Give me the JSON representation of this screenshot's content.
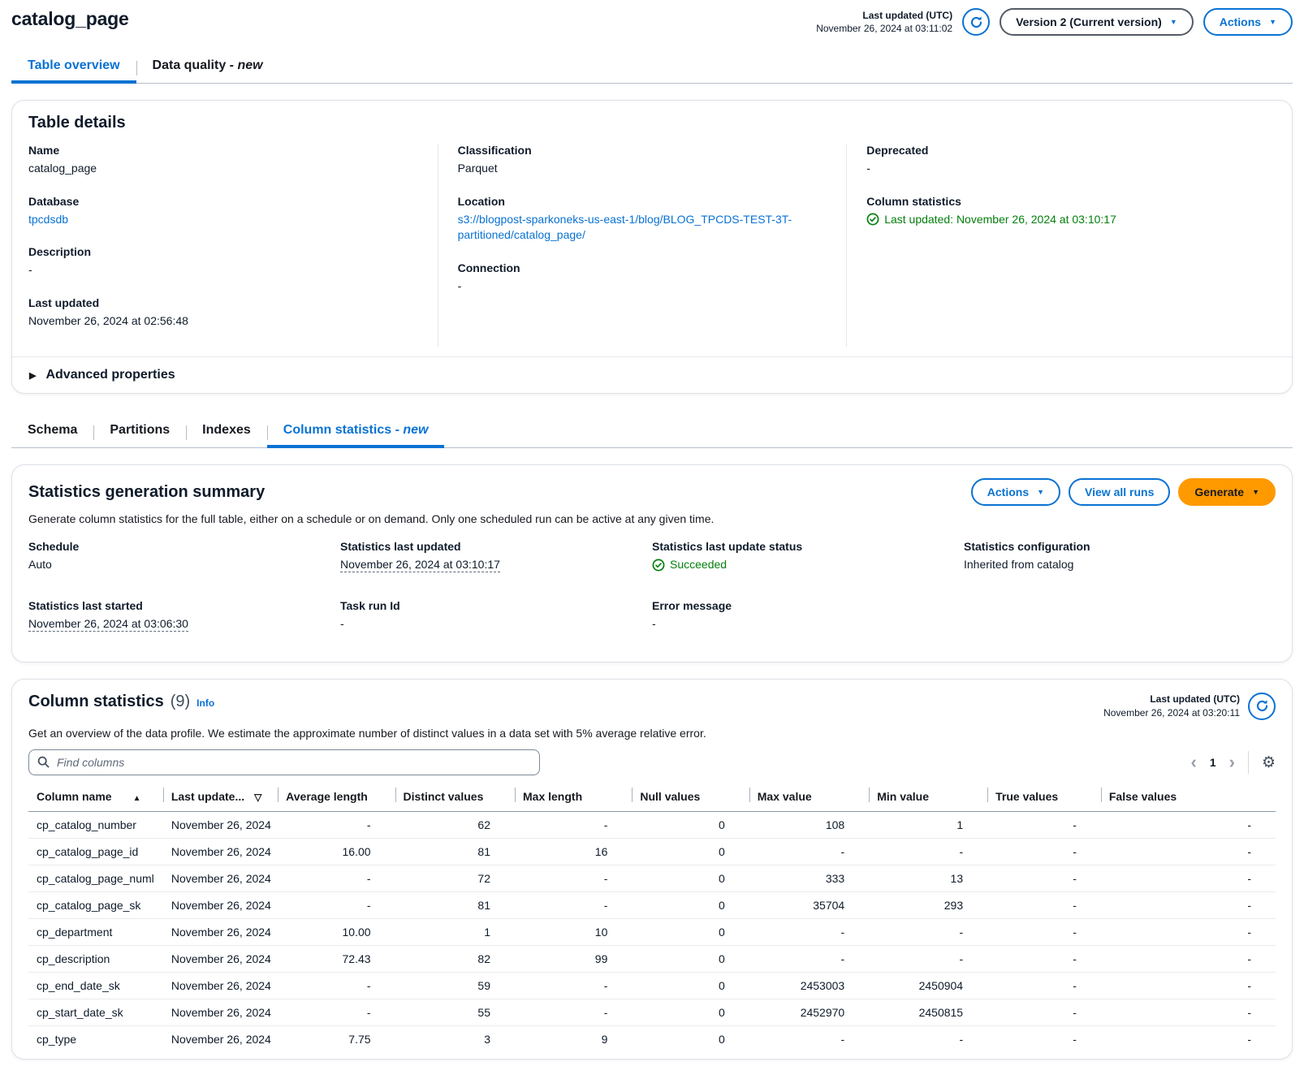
{
  "colors": {
    "accent_blue": "#0972d3",
    "success_green": "#037f0c",
    "primary_orange": "#ff9900"
  },
  "page": {
    "title": "catalog_page"
  },
  "top_bar": {
    "last_updated_label": "Last updated (UTC)",
    "last_updated_value": "November 26, 2024 at 03:11:02",
    "version_selector": "Version 2 (Current version)",
    "actions_button": "Actions"
  },
  "page_tabs": [
    {
      "label": "Table overview",
      "active": true
    },
    {
      "label": "Data quality -",
      "suffix_italic": "new",
      "active": false
    }
  ],
  "table_details": {
    "title": "Table details",
    "columns": [
      [
        {
          "label": "Name",
          "value": "catalog_page"
        },
        {
          "label": "Database",
          "value": "tpcdsdb",
          "type": "link"
        },
        {
          "label": "Description",
          "value": "-"
        },
        {
          "label": "Last updated",
          "value": "November 26, 2024 at 02:56:48"
        }
      ],
      [
        {
          "label": "Classification",
          "value": "Parquet"
        },
        {
          "label": "Location",
          "value": "s3://blogpost-sparkoneks-us-east-1/blog/BLOG_TPCDS-TEST-3T-partitioned/catalog_page/",
          "type": "link"
        },
        {
          "label": "Connection",
          "value": "-"
        }
      ],
      [
        {
          "label": "Deprecated",
          "value": "-"
        },
        {
          "label": "Column statistics",
          "value": "Last updated: November 26, 2024 at 03:10:17",
          "type": "success"
        }
      ]
    ]
  },
  "advanced_properties": {
    "label": "Advanced properties"
  },
  "section_tabs": [
    {
      "label": "Schema",
      "active": false
    },
    {
      "label": "Partitions",
      "active": false
    },
    {
      "label": "Indexes",
      "active": false
    },
    {
      "label": "Column statistics -",
      "suffix_italic": "new",
      "active": true
    }
  ],
  "stats_summary": {
    "title": "Statistics generation summary",
    "description": "Generate column statistics for the full table, either on a schedule or on demand. Only one scheduled run can be active at any given time.",
    "actions_button": "Actions",
    "view_all_runs_button": "View all runs",
    "generate_button": "Generate",
    "fields": [
      {
        "label": "Schedule",
        "value": "Auto"
      },
      {
        "label": "Statistics last updated",
        "value": "November 26, 2024 at 03:10:17",
        "type": "dotted"
      },
      {
        "label": "Statistics last update status",
        "value": "Succeeded",
        "type": "success"
      },
      {
        "label": "Statistics configuration",
        "value": "Inherited from catalog"
      },
      {
        "label": "Statistics last started",
        "value": "November 26, 2024 at 03:06:30",
        "type": "dotted"
      },
      {
        "label": "Task run Id",
        "value": "-"
      },
      {
        "label": "Error message",
        "value": "-"
      }
    ]
  },
  "column_statistics": {
    "title": "Column statistics",
    "count": "(9)",
    "info_link": "Info",
    "description": "Get an overview of the data profile. We estimate the approximate number of distinct values in a data set with 5% average relative error.",
    "search_placeholder": "Find columns",
    "last_updated_label": "Last updated (UTC)",
    "last_updated_value": "November 26, 2024 at 03:20:11",
    "pagination": {
      "current_page": "1"
    },
    "table": {
      "columns": [
        {
          "label": "Column name",
          "icon": "sort-ascending"
        },
        {
          "label": "Last update...",
          "icon": "filter"
        },
        {
          "label": "Average length"
        },
        {
          "label": "Distinct values"
        },
        {
          "label": "Max length"
        },
        {
          "label": "Null values"
        },
        {
          "label": "Max value"
        },
        {
          "label": "Min value"
        },
        {
          "label": "True values"
        },
        {
          "label": "False values"
        }
      ],
      "rows": [
        [
          "cp_catalog_number",
          "November 26, 2024",
          "-",
          "62",
          "-",
          "0",
          "108",
          "1",
          "-",
          "-"
        ],
        [
          "cp_catalog_page_id",
          "November 26, 2024",
          "16.00",
          "81",
          "16",
          "0",
          "-",
          "-",
          "-",
          "-"
        ],
        [
          "cp_catalog_page_numl",
          "November 26, 2024",
          "-",
          "72",
          "-",
          "0",
          "333",
          "13",
          "-",
          "-"
        ],
        [
          "cp_catalog_page_sk",
          "November 26, 2024",
          "-",
          "81",
          "-",
          "0",
          "35704",
          "293",
          "-",
          "-"
        ],
        [
          "cp_department",
          "November 26, 2024",
          "10.00",
          "1",
          "10",
          "0",
          "-",
          "-",
          "-",
          "-"
        ],
        [
          "cp_description",
          "November 26, 2024",
          "72.43",
          "82",
          "99",
          "0",
          "-",
          "-",
          "-",
          "-"
        ],
        [
          "cp_end_date_sk",
          "November 26, 2024",
          "-",
          "59",
          "-",
          "0",
          "2453003",
          "2450904",
          "-",
          "-"
        ],
        [
          "cp_start_date_sk",
          "November 26, 2024",
          "-",
          "55",
          "-",
          "0",
          "2452970",
          "2450815",
          "-",
          "-"
        ],
        [
          "cp_type",
          "November 26, 2024",
          "7.75",
          "3",
          "9",
          "0",
          "-",
          "-",
          "-",
          "-"
        ]
      ]
    }
  },
  "icons": {
    "refresh": "circular-arrow",
    "search": "magnifier",
    "settings": "gear",
    "success": "check-circle",
    "sort_ascending": "filled-up-triangle",
    "filter": "outlined-down-triangle",
    "expand": "right-triangle",
    "dropdown": "down-caret"
  }
}
